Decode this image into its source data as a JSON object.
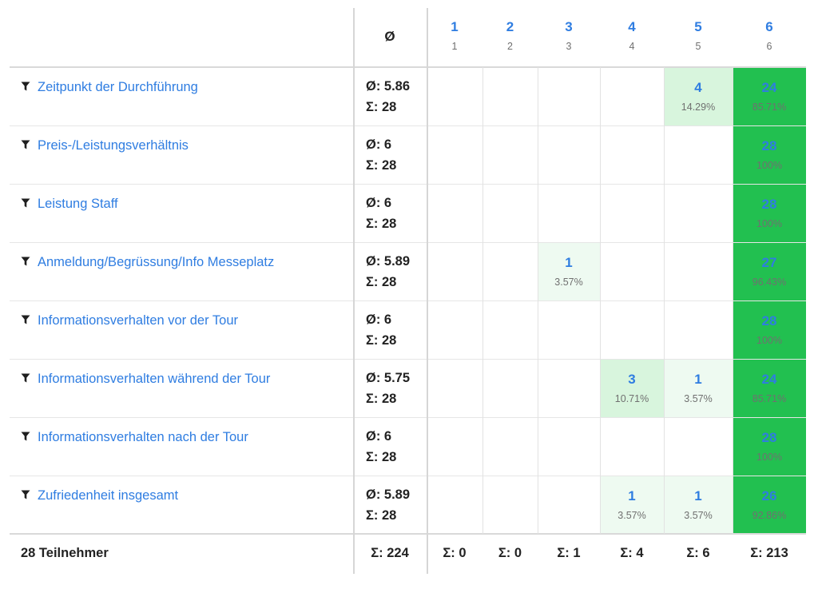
{
  "header": {
    "avg_symbol": "Ø",
    "columns": [
      {
        "label": "1",
        "sub": "1"
      },
      {
        "label": "2",
        "sub": "2"
      },
      {
        "label": "3",
        "sub": "3"
      },
      {
        "label": "4",
        "sub": "4"
      },
      {
        "label": "5",
        "sub": "5"
      },
      {
        "label": "6",
        "sub": "6"
      }
    ]
  },
  "icons": {
    "filter": "filter-icon"
  },
  "colors": {
    "link": "#2f7de1",
    "strong": "#22c050",
    "medium": "#d8f5dd",
    "light": "#eefaf1"
  },
  "rows": [
    {
      "label": "Zeitpunkt der Durchführung",
      "avg": "Ø: 5.86",
      "sum": "Σ: 28",
      "cells": [
        null,
        null,
        null,
        null,
        {
          "count": "4",
          "pct": "14.29%",
          "shade": "medium"
        },
        {
          "count": "24",
          "pct": "85.71%",
          "shade": "strong"
        }
      ]
    },
    {
      "label": "Preis-/Leistungsverhältnis",
      "avg": "Ø: 6",
      "sum": "Σ: 28",
      "cells": [
        null,
        null,
        null,
        null,
        null,
        {
          "count": "28",
          "pct": "100%",
          "shade": "strong"
        }
      ]
    },
    {
      "label": "Leistung Staff",
      "avg": "Ø: 6",
      "sum": "Σ: 28",
      "cells": [
        null,
        null,
        null,
        null,
        null,
        {
          "count": "28",
          "pct": "100%",
          "shade": "strong"
        }
      ]
    },
    {
      "label": "Anmeldung/Begrüssung/Info Messeplatz",
      "avg": "Ø: 5.89",
      "sum": "Σ: 28",
      "cells": [
        null,
        null,
        {
          "count": "1",
          "pct": "3.57%",
          "shade": "light"
        },
        null,
        null,
        {
          "count": "27",
          "pct": "96.43%",
          "shade": "strong"
        }
      ]
    },
    {
      "label": "Informationsverhalten vor der Tour",
      "avg": "Ø: 6",
      "sum": "Σ: 28",
      "cells": [
        null,
        null,
        null,
        null,
        null,
        {
          "count": "28",
          "pct": "100%",
          "shade": "strong"
        }
      ]
    },
    {
      "label": "Informationsverhalten während der Tour",
      "avg": "Ø: 5.75",
      "sum": "Σ: 28",
      "cells": [
        null,
        null,
        null,
        {
          "count": "3",
          "pct": "10.71%",
          "shade": "medium"
        },
        {
          "count": "1",
          "pct": "3.57%",
          "shade": "light"
        },
        {
          "count": "24",
          "pct": "85.71%",
          "shade": "strong"
        }
      ]
    },
    {
      "label": "Informationsverhalten nach der Tour",
      "avg": "Ø: 6",
      "sum": "Σ: 28",
      "cells": [
        null,
        null,
        null,
        null,
        null,
        {
          "count": "28",
          "pct": "100%",
          "shade": "strong"
        }
      ]
    },
    {
      "label": "Zufriedenheit insgesamt",
      "avg": "Ø: 5.89",
      "sum": "Σ: 28",
      "cells": [
        null,
        null,
        null,
        {
          "count": "1",
          "pct": "3.57%",
          "shade": "light"
        },
        {
          "count": "1",
          "pct": "3.57%",
          "shade": "light"
        },
        {
          "count": "26",
          "pct": "92.86%",
          "shade": "strong"
        }
      ]
    }
  ],
  "footer": {
    "participants": "28 Teilnehmer",
    "total_sum": "Σ: 224",
    "column_sums": [
      "Σ: 0",
      "Σ: 0",
      "Σ: 1",
      "Σ: 4",
      "Σ: 6",
      "Σ: 213"
    ]
  }
}
